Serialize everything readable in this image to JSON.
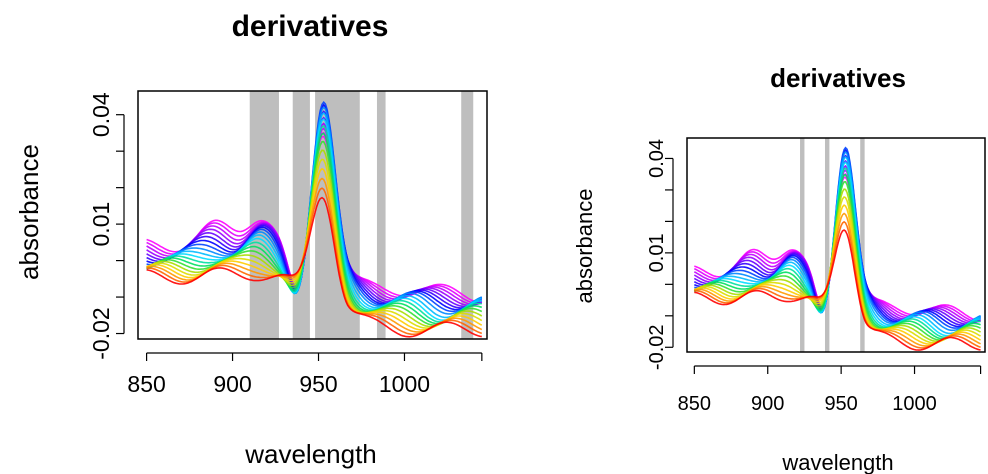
{
  "chart_data": [
    {
      "type": "line",
      "title": "derivatives",
      "xlabel": "wavelength",
      "ylabel": "absorbance",
      "xlim": [
        845,
        1048
      ],
      "ylim": [
        -0.0215,
        0.0465
      ],
      "x_ticks": [
        850,
        900,
        950,
        1000
      ],
      "x_tick_labels": [
        "850",
        "900",
        "950",
        "1000"
      ],
      "y_ticks": [
        -0.02,
        0.01,
        0.04
      ],
      "y_tick_labels": [
        "-0.02",
        "0.01",
        "0.04"
      ],
      "highlight_color": "#bebebe",
      "highlight_bands": [
        [
          910,
          927
        ],
        [
          935,
          945
        ],
        [
          948,
          974
        ],
        [
          984,
          989
        ],
        [
          1033,
          1040
        ]
      ],
      "series_colors": [
        "#ff00ff",
        "#e000ff",
        "#c000ff",
        "#9900ff",
        "#6600ff",
        "#3300ff",
        "#0000ff",
        "#0044ff",
        "#0088ff",
        "#00bbff",
        "#00ddff",
        "#00e0a0",
        "#00e060",
        "#33e033",
        "#aadd00",
        "#dddd00",
        "#ffcc00",
        "#ff9900",
        "#ff6600",
        "#ff0000"
      ],
      "series_count": 20,
      "grid": false,
      "legend": "none"
    },
    {
      "type": "line",
      "title": "derivatives",
      "xlabel": "wavelength",
      "ylabel": "absorbance",
      "xlim": [
        845,
        1048
      ],
      "ylim": [
        -0.0215,
        0.0465
      ],
      "x_ticks": [
        850,
        900,
        950,
        1000
      ],
      "x_tick_labels": [
        "850",
        "900",
        "950",
        "1000"
      ],
      "y_ticks": [
        -0.02,
        0.01,
        0.04
      ],
      "y_tick_labels": [
        "-0.02",
        "0.01",
        "0.04"
      ],
      "highlight_color": "#bebebe",
      "highlight_bands": [
        [
          922,
          925
        ],
        [
          939,
          942
        ],
        [
          963,
          966
        ]
      ],
      "series_colors": [
        "#ff00ff",
        "#e000ff",
        "#c000ff",
        "#9900ff",
        "#6600ff",
        "#3300ff",
        "#0000ff",
        "#0044ff",
        "#0088ff",
        "#00bbff",
        "#00ddff",
        "#00e0a0",
        "#00e060",
        "#33e033",
        "#aadd00",
        "#dddd00",
        "#ffcc00",
        "#ff9900",
        "#ff6600",
        "#ff0000"
      ],
      "series_count": 20,
      "grid": false,
      "legend": "none"
    }
  ]
}
